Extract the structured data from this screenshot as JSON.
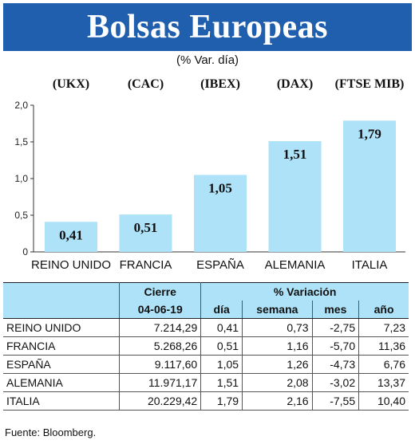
{
  "header": {
    "title": "Bolsas Europeas",
    "subtitle": "(% Var. día)"
  },
  "chart_data": {
    "type": "bar",
    "categories": [
      "REINO UNIDO",
      "FRANCIA",
      "ESPAÑA",
      "ALEMANIA",
      "ITALIA"
    ],
    "codes": [
      "(UKX)",
      "(CAC)",
      "(IBEX)",
      "(DAX)",
      "(FTSE MIB)"
    ],
    "values": [
      0.41,
      0.51,
      1.05,
      1.51,
      1.79
    ],
    "data_labels": [
      "0,41",
      "0,51",
      "1,05",
      "1,51",
      "1,79"
    ],
    "yticks": [
      "0",
      "0,5",
      "1,0",
      "1,5",
      "2,0"
    ],
    "ylim": [
      0,
      2.0
    ],
    "bar_color": "#aee2f8"
  },
  "table": {
    "header_cierre": "Cierre",
    "header_variacion": "% Variación",
    "date": "04-06-19",
    "col_dia": "día",
    "col_semana": "semana",
    "col_mes": "mes",
    "col_anio": "año",
    "rows": [
      {
        "country": "REINO UNIDO",
        "cierre": "7.214,29",
        "dia": "0,41",
        "semana": "0,73",
        "mes": "-2,75",
        "anio": "7,23"
      },
      {
        "country": "FRANCIA",
        "cierre": "5.268,26",
        "dia": "0,51",
        "semana": "1,16",
        "mes": "-5,70",
        "anio": "11,36"
      },
      {
        "country": "ESPAÑA",
        "cierre": "9.117,60",
        "dia": "1,05",
        "semana": "1,26",
        "mes": "-4,73",
        "anio": "6,76"
      },
      {
        "country": "ALEMANIA",
        "cierre": "11.971,17",
        "dia": "1,51",
        "semana": "2,08",
        "mes": "-3,02",
        "anio": "13,37"
      },
      {
        "country": "ITALIA",
        "cierre": "20.229,42",
        "dia": "1,79",
        "semana": "2,16",
        "mes": "-7,55",
        "anio": "10,40"
      }
    ]
  },
  "source": "Fuente: Bloomberg."
}
